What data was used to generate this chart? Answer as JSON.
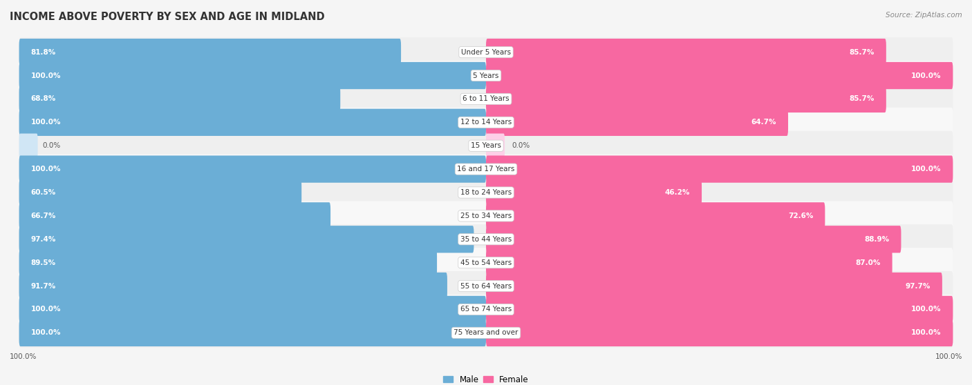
{
  "title": "INCOME ABOVE POVERTY BY SEX AND AGE IN MIDLAND",
  "source": "Source: ZipAtlas.com",
  "categories": [
    "Under 5 Years",
    "5 Years",
    "6 to 11 Years",
    "12 to 14 Years",
    "15 Years",
    "16 and 17 Years",
    "18 to 24 Years",
    "25 to 34 Years",
    "35 to 44 Years",
    "45 to 54 Years",
    "55 to 64 Years",
    "65 to 74 Years",
    "75 Years and over"
  ],
  "male_values": [
    81.8,
    100.0,
    68.8,
    100.0,
    0.0,
    100.0,
    60.5,
    66.7,
    97.4,
    89.5,
    91.7,
    100.0,
    100.0
  ],
  "female_values": [
    85.7,
    100.0,
    85.7,
    64.7,
    0.0,
    100.0,
    46.2,
    72.6,
    88.9,
    87.0,
    97.7,
    100.0,
    100.0
  ],
  "male_color": "#6baed6",
  "female_color": "#f768a1",
  "male_color_light": "#d0e6f5",
  "female_color_light": "#fdd0e8",
  "row_bg_even": "#efefef",
  "row_bg_odd": "#f8f8f8",
  "bg_color": "#f5f5f5",
  "title_fontsize": 10.5,
  "label_fontsize": 7.5,
  "value_fontsize": 7.5,
  "bar_height": 0.58,
  "source_fontsize": 7.5
}
